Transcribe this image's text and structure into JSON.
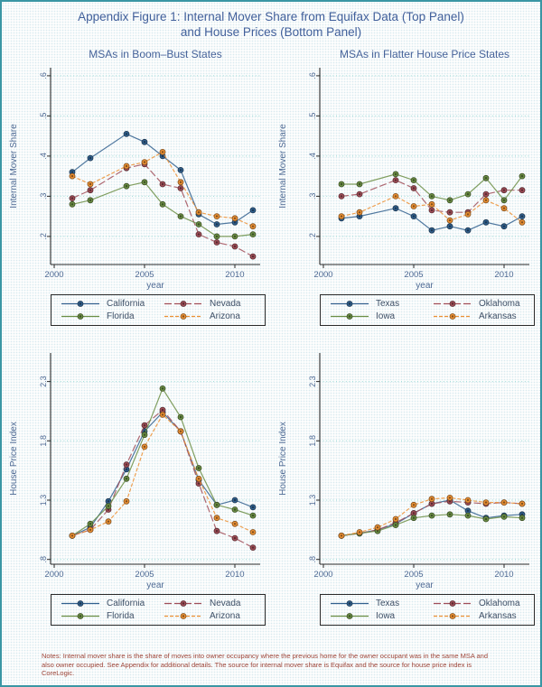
{
  "figure_title_line1": "Appendix Figure 1: Internal Mover Share from Equifax Data (Top Panel)",
  "figure_title_line2": "and House Prices (Bottom Panel)",
  "notes": "Notes: Internal mover share is the share of moves into owner occupancy where the previous home for the owner occupant was in the same MSA and also owner occupied.  See Appendix for additional details.  The source for internal mover share is Equifax and the source for house price index is CoreLogic.",
  "colors": {
    "blue": "#31608e",
    "maroon": "#a04e58",
    "green": "#6b8e44",
    "orange": "#ec9134",
    "grid": "#9adcd6",
    "axis": "#2b2b2b",
    "text": "#4e6a94",
    "legend_text": "#3d4f66",
    "notes_text": "#9e4538",
    "border": "#3a96a4"
  },
  "chart_data": [
    {
      "type": "line",
      "position": "top-left",
      "title": "MSAs in Boom–Bust States",
      "ylabel": "Internal Mover Share",
      "xlabel": "year",
      "x": [
        2001,
        2002,
        2004,
        2005,
        2006,
        2007,
        2008,
        2009,
        2010,
        2011
      ],
      "xlim": [
        1999.8,
        2011.4
      ],
      "ylim": [
        0.13,
        0.62
      ],
      "yticks": [
        0.2,
        0.3,
        0.4,
        0.5,
        0.6
      ],
      "ytick_labels": [
        ".2",
        ".3",
        ".4",
        ".5",
        ".6"
      ],
      "xticks": [
        2000,
        2005,
        2010
      ],
      "grid": "horizontal-dotted",
      "legend_position": "below",
      "series": [
        {
          "name": "California",
          "color_key": "blue",
          "dash": "",
          "values": [
            0.36,
            0.395,
            0.455,
            0.435,
            0.4,
            0.365,
            0.255,
            0.23,
            0.235,
            0.265
          ]
        },
        {
          "name": "Nevada",
          "color_key": "maroon",
          "dash": "8,3",
          "values": [
            0.295,
            0.315,
            0.37,
            0.38,
            0.33,
            0.32,
            0.205,
            0.185,
            0.175,
            0.15
          ]
        },
        {
          "name": "Florida",
          "color_key": "green",
          "dash": "",
          "values": [
            0.28,
            0.29,
            0.325,
            0.335,
            0.28,
            0.25,
            0.23,
            0.2,
            0.2,
            0.205
          ]
        },
        {
          "name": "Arizona",
          "color_key": "orange",
          "dash": "4,2",
          "values": [
            0.35,
            0.33,
            0.375,
            0.385,
            0.41,
            0.335,
            0.26,
            0.25,
            0.245,
            0.225
          ]
        }
      ]
    },
    {
      "type": "line",
      "position": "top-right",
      "title": "MSAs in Flatter House Price States",
      "ylabel": "Internal Mover Share",
      "xlabel": "year",
      "x": [
        2001,
        2002,
        2004,
        2005,
        2006,
        2007,
        2008,
        2009,
        2010,
        2011
      ],
      "xlim": [
        1999.8,
        2011.4
      ],
      "ylim": [
        0.13,
        0.62
      ],
      "yticks": [
        0.2,
        0.3,
        0.4,
        0.5,
        0.6
      ],
      "ytick_labels": [
        ".2",
        ".3",
        ".4",
        ".5",
        ".6"
      ],
      "xticks": [
        2000,
        2005,
        2010
      ],
      "grid": "horizontal-dotted",
      "legend_position": "below",
      "series": [
        {
          "name": "Texas",
          "color_key": "blue",
          "dash": "",
          "values": [
            0.245,
            0.25,
            0.27,
            0.25,
            0.215,
            0.225,
            0.215,
            0.235,
            0.225,
            0.25
          ]
        },
        {
          "name": "Oklahoma",
          "color_key": "maroon",
          "dash": "8,3",
          "values": [
            0.3,
            0.305,
            0.34,
            0.32,
            0.265,
            0.26,
            0.26,
            0.305,
            0.315,
            0.315
          ]
        },
        {
          "name": "Iowa",
          "color_key": "green",
          "dash": "",
          "values": [
            0.33,
            0.33,
            0.355,
            0.34,
            0.3,
            0.29,
            0.305,
            0.345,
            0.29,
            0.35
          ]
        },
        {
          "name": "Arkansas",
          "color_key": "orange",
          "dash": "4,2",
          "values": [
            0.25,
            0.26,
            0.3,
            0.275,
            0.28,
            0.24,
            0.255,
            0.29,
            0.27,
            0.235
          ]
        }
      ]
    },
    {
      "type": "line",
      "position": "bottom-left",
      "ylabel": "House Price Index",
      "xlabel": "year",
      "x": [
        2001,
        2002,
        2003,
        2004,
        2005,
        2006,
        2007,
        2008,
        2009,
        2010,
        2011
      ],
      "xlim": [
        1999.8,
        2011.4
      ],
      "ylim": [
        0.76,
        2.54
      ],
      "yticks": [
        0.8,
        1.3,
        1.8,
        2.3
      ],
      "ytick_labels": [
        ".8",
        "1.3",
        "1.8",
        "2.3"
      ],
      "xticks": [
        2000,
        2005,
        2010
      ],
      "grid": "horizontal-dotted",
      "legend_position": "below",
      "series": [
        {
          "name": "California",
          "color_key": "blue",
          "dash": "",
          "values": [
            1.0,
            1.07,
            1.29,
            1.56,
            1.88,
            2.04,
            1.88,
            1.47,
            1.26,
            1.3,
            1.24
          ]
        },
        {
          "name": "Nevada",
          "color_key": "maroon",
          "dash": "8,3",
          "values": [
            1.0,
            1.05,
            1.22,
            1.6,
            1.93,
            2.06,
            1.88,
            1.44,
            1.04,
            0.98,
            0.9
          ]
        },
        {
          "name": "Florida",
          "color_key": "green",
          "dash": "",
          "values": [
            1.0,
            1.1,
            1.25,
            1.48,
            1.85,
            2.24,
            2.0,
            1.57,
            1.26,
            1.22,
            1.17
          ]
        },
        {
          "name": "Arizona",
          "color_key": "orange",
          "dash": "4,2",
          "values": [
            1.0,
            1.05,
            1.12,
            1.29,
            1.75,
            2.02,
            1.88,
            1.48,
            1.15,
            1.1,
            1.03
          ]
        }
      ]
    },
    {
      "type": "line",
      "position": "bottom-right",
      "ylabel": "House Price Index",
      "xlabel": "year",
      "x": [
        2001,
        2002,
        2003,
        2004,
        2005,
        2006,
        2007,
        2008,
        2009,
        2010,
        2011
      ],
      "xlim": [
        1999.8,
        2011.4
      ],
      "ylim": [
        0.76,
        2.54
      ],
      "yticks": [
        0.8,
        1.3,
        1.8,
        2.3
      ],
      "ytick_labels": [
        ".8",
        "1.3",
        "1.8",
        "2.3"
      ],
      "xticks": [
        2000,
        2005,
        2010
      ],
      "grid": "horizontal-dotted",
      "legend_position": "below",
      "series": [
        {
          "name": "Texas",
          "color_key": "blue",
          "dash": "",
          "values": [
            1.0,
            1.02,
            1.05,
            1.1,
            1.19,
            1.27,
            1.3,
            1.21,
            1.15,
            1.17,
            1.18
          ]
        },
        {
          "name": "Oklahoma",
          "color_key": "maroon",
          "dash": "8,3",
          "values": [
            1.0,
            1.02,
            1.05,
            1.11,
            1.19,
            1.27,
            1.29,
            1.28,
            1.27,
            1.28,
            1.27
          ]
        },
        {
          "name": "Iowa",
          "color_key": "green",
          "dash": "",
          "values": [
            1.0,
            1.02,
            1.04,
            1.09,
            1.15,
            1.17,
            1.18,
            1.17,
            1.14,
            1.16,
            1.15
          ]
        },
        {
          "name": "Arkansas",
          "color_key": "orange",
          "dash": "4,2",
          "values": [
            1.0,
            1.03,
            1.07,
            1.14,
            1.26,
            1.31,
            1.32,
            1.3,
            1.28,
            1.28,
            1.27
          ]
        }
      ]
    }
  ]
}
